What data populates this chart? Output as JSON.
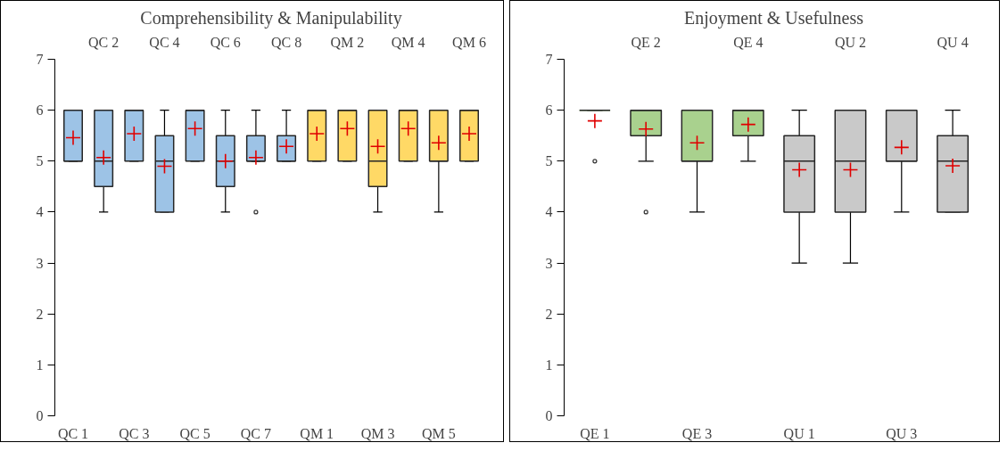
{
  "chart_data": [
    {
      "type": "box",
      "title": "Comprehensibility & Manipulability",
      "categories": [
        "QC 1",
        "QC 2",
        "QC 3",
        "QC 4",
        "QC 5",
        "QC 6",
        "QC 7",
        "QC 8",
        "QM 1",
        "QM 2",
        "QM 3",
        "QM 4",
        "QM 5",
        "QM 6"
      ],
      "colors": [
        "#9dc3e6",
        "#9dc3e6",
        "#9dc3e6",
        "#9dc3e6",
        "#9dc3e6",
        "#9dc3e6",
        "#9dc3e6",
        "#9dc3e6",
        "#ffd966",
        "#ffd966",
        "#ffd966",
        "#ffd966",
        "#ffd966",
        "#ffd966"
      ],
      "boxes": [
        {
          "low": 5,
          "q1": 5,
          "median": 5,
          "q3": 6,
          "high": 6,
          "mean": 5.46
        },
        {
          "low": 4,
          "q1": 4.5,
          "median": 5,
          "q3": 6,
          "high": 6,
          "mean": 5.07
        },
        {
          "low": 5,
          "q1": 5,
          "median": 6,
          "q3": 6,
          "high": 6,
          "mean": 5.54
        },
        {
          "low": 4,
          "q1": 4,
          "median": 5,
          "q3": 5.5,
          "high": 6,
          "mean": 4.9
        },
        {
          "low": 5,
          "q1": 5,
          "median": 6,
          "q3": 6,
          "high": 6,
          "mean": 5.64
        },
        {
          "low": 4,
          "q1": 4.5,
          "median": 5,
          "q3": 5.5,
          "high": 6,
          "mean": 5.0
        },
        {
          "low": 5,
          "q1": 5,
          "median": 5,
          "q3": 5.5,
          "high": 6,
          "mean": 5.07,
          "outliers": [
            4
          ]
        },
        {
          "low": 5,
          "q1": 5,
          "median": 5,
          "q3": 5.5,
          "high": 6,
          "mean": 5.29
        },
        {
          "low": 5,
          "q1": 5,
          "median": 6,
          "q3": 6,
          "high": 6,
          "mean": 5.54
        },
        {
          "low": 5,
          "q1": 5,
          "median": 6,
          "q3": 6,
          "high": 6,
          "mean": 5.64
        },
        {
          "low": 4,
          "q1": 4.5,
          "median": 5,
          "q3": 6,
          "high": 6,
          "mean": 5.29
        },
        {
          "low": 5,
          "q1": 5,
          "median": 6,
          "q3": 6,
          "high": 6,
          "mean": 5.64
        },
        {
          "low": 4,
          "q1": 5,
          "median": 5,
          "q3": 6,
          "high": 6,
          "mean": 5.36
        },
        {
          "low": 5,
          "q1": 5,
          "median": 6,
          "q3": 6,
          "high": 6,
          "mean": 5.54
        }
      ],
      "ylim": [
        0,
        7
      ],
      "yticks": [
        0,
        1,
        2,
        3,
        4,
        5,
        6,
        7
      ],
      "marker": "cross"
    },
    {
      "type": "box",
      "title": "Enjoyment & Usefulness",
      "categories": [
        "QE 1",
        "QE 2",
        "QE 3",
        "QE 4",
        "QU 1",
        "QU 2",
        "QU 3",
        "QU 4"
      ],
      "colors": [
        "#a9d18e",
        "#a9d18e",
        "#a9d18e",
        "#a9d18e",
        "#c9c9c9",
        "#c9c9c9",
        "#c9c9c9",
        "#c9c9c9"
      ],
      "boxes": [
        {
          "low": 6,
          "q1": 6,
          "median": 6,
          "q3": 6,
          "high": 6,
          "mean": 5.79,
          "outliers": [
            5
          ]
        },
        {
          "low": 5,
          "q1": 5.5,
          "median": 6,
          "q3": 6,
          "high": 6,
          "mean": 5.63,
          "outliers": [
            4
          ]
        },
        {
          "low": 4,
          "q1": 5,
          "median": 5,
          "q3": 6,
          "high": 6,
          "mean": 5.36
        },
        {
          "low": 5,
          "q1": 5.5,
          "median": 6,
          "q3": 6,
          "high": 6,
          "mean": 5.72
        },
        {
          "low": 3,
          "q1": 4,
          "median": 5,
          "q3": 5.5,
          "high": 6,
          "mean": 4.83
        },
        {
          "low": 3,
          "q1": 4,
          "median": 5,
          "q3": 6,
          "high": 6,
          "mean": 4.83
        },
        {
          "low": 4,
          "q1": 5,
          "median": 5,
          "q3": 6,
          "high": 6,
          "mean": 5.27
        },
        {
          "low": 4,
          "q1": 4,
          "median": 5,
          "q3": 5.5,
          "high": 6,
          "mean": 4.91
        }
      ],
      "ylim": [
        0,
        7
      ],
      "yticks": [
        0,
        1,
        2,
        3,
        4,
        5,
        6,
        7
      ],
      "marker": "cross"
    }
  ]
}
